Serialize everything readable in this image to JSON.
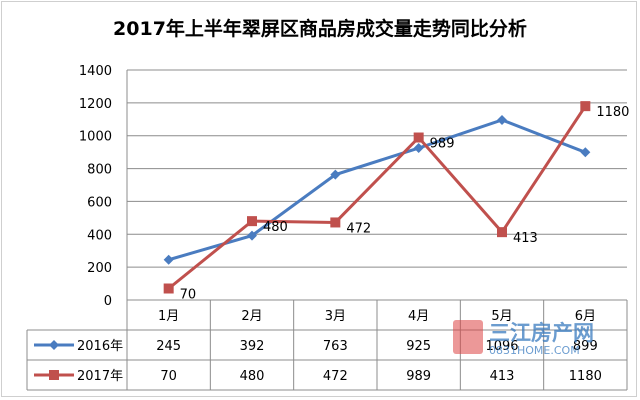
{
  "chart_data": {
    "type": "line",
    "title": "2017年上半年翠屏区商品房成交量走势同比分析",
    "categories": [
      "1月",
      "2月",
      "3月",
      "4月",
      "5月",
      "6月"
    ],
    "series": [
      {
        "name": "2016年",
        "values": [
          245,
          392,
          763,
          925,
          1096,
          899
        ],
        "color": "#4a7cc0",
        "marker": "diamond"
      },
      {
        "name": "2017年",
        "values": [
          70,
          480,
          472,
          989,
          413,
          1180
        ],
        "color": "#c0504d",
        "marker": "square"
      }
    ],
    "data_labels": [
      "70",
      "480",
      "472",
      "989",
      "413",
      "1180"
    ],
    "table_values": [
      [
        "245",
        "392",
        "763",
        "925",
        "1096",
        "899"
      ],
      [
        "70",
        "480",
        "472",
        "989",
        "413",
        "1180"
      ]
    ],
    "yticks": [
      "0",
      "200",
      "400",
      "600",
      "800",
      "1000",
      "1200",
      "1400"
    ],
    "ylim": [
      0,
      1400
    ],
    "grid": true,
    "legend": "data-table"
  },
  "watermark": {
    "text": "三江房产网",
    "sub": "0831HOME.COM"
  }
}
